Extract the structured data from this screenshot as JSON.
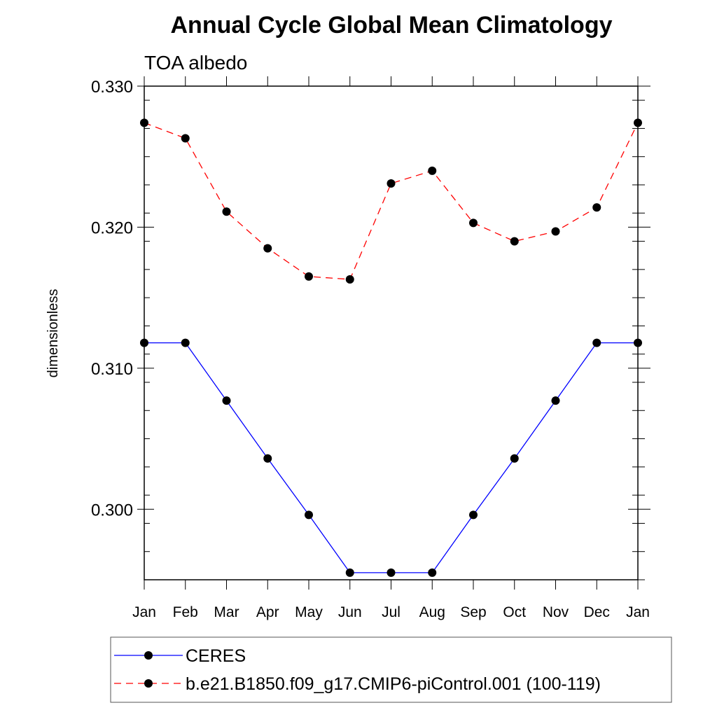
{
  "chart_data": {
    "type": "line",
    "title": "Annual Cycle Global Mean Climatology",
    "subtitle": "TOA albedo",
    "xlabel": "",
    "ylabel": "dimensionless",
    "categories": [
      "Jan",
      "Feb",
      "Mar",
      "Apr",
      "May",
      "Jun",
      "Jul",
      "Aug",
      "Sep",
      "Oct",
      "Nov",
      "Dec",
      "Jan"
    ],
    "ylim": [
      0.295,
      0.33
    ],
    "yticks": [
      0.3,
      0.31,
      0.32,
      0.33
    ],
    "ytick_labels": [
      "0.300",
      "0.310",
      "0.320",
      "0.330"
    ],
    "minor_tick_step": 0.002,
    "legend_position": "bottom",
    "series": [
      {
        "name": "CERES",
        "color": "#0000ff",
        "dash": "solid",
        "marker": "filled-circle",
        "values": [
          0.3118,
          0.3118,
          0.3077,
          0.3036,
          0.2996,
          0.2955,
          0.2955,
          0.2955,
          0.2996,
          0.3036,
          0.3077,
          0.3118,
          0.3118
        ]
      },
      {
        "name": "b.e21.B1850.f09_g17.CMIP6-piControl.001 (100-119)",
        "color": "#ff0000",
        "dash": "dashed",
        "marker": "filled-circle",
        "values": [
          0.3274,
          0.3263,
          0.3211,
          0.3185,
          0.3165,
          0.3163,
          0.3231,
          0.324,
          0.3203,
          0.319,
          0.3197,
          0.3214,
          0.3274
        ]
      }
    ]
  }
}
